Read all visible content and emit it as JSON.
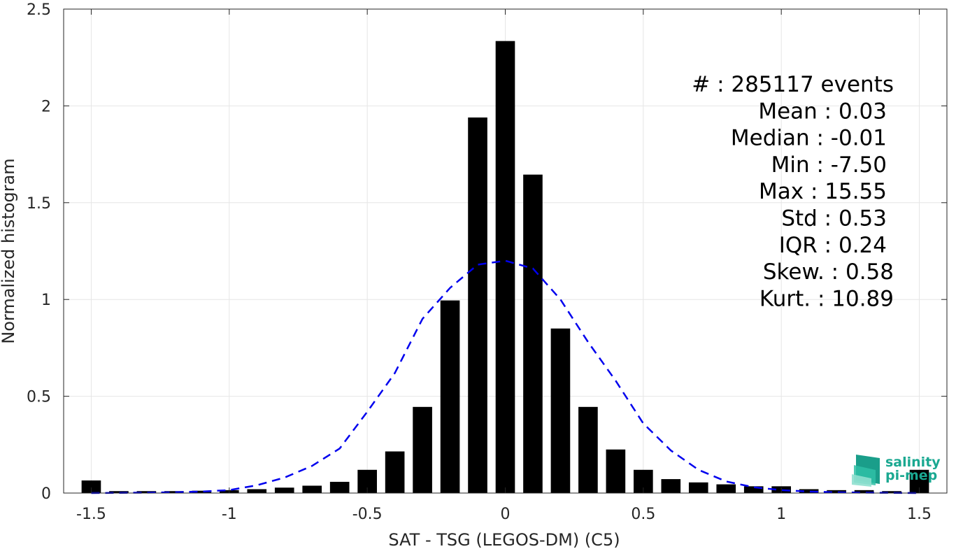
{
  "chart_data": {
    "type": "bar",
    "xlabel": "SAT - TSG (LEGOS-DM) (C5)",
    "ylabel": "Normalized histogram",
    "xlim": [
      -1.6,
      1.6
    ],
    "ylim": [
      0,
      2.5
    ],
    "grid": true,
    "x_ticks": [
      "-1.5",
      "-1",
      "-0.5",
      "0",
      "0.5",
      "1",
      "1.5"
    ],
    "x_tick_values": [
      -1.5,
      -1,
      -0.5,
      0,
      0.5,
      1,
      1.5
    ],
    "y_ticks": [
      "0",
      "0.5",
      "1",
      "1.5",
      "2",
      "2.5"
    ],
    "y_tick_values": [
      0,
      0.5,
      1,
      1.5,
      2,
      2.5
    ],
    "bar_color": "#000000",
    "bars": {
      "x": [
        -1.5,
        -1.4,
        -1.3,
        -1.2,
        -1.1,
        -1.0,
        -0.9,
        -0.8,
        -0.7,
        -0.6,
        -0.5,
        -0.4,
        -0.3,
        -0.2,
        -0.1,
        0.0,
        0.1,
        0.2,
        0.3,
        0.4,
        0.5,
        0.6,
        0.7,
        0.8,
        0.9,
        1.0,
        1.1,
        1.2,
        1.3,
        1.4,
        1.5
      ],
      "values": [
        0.065,
        0.01,
        0.01,
        0.01,
        0.012,
        0.015,
        0.02,
        0.028,
        0.038,
        0.058,
        0.12,
        0.215,
        0.445,
        0.995,
        1.94,
        2.335,
        1.645,
        0.85,
        0.445,
        0.225,
        0.12,
        0.072,
        0.055,
        0.045,
        0.035,
        0.035,
        0.02,
        0.015,
        0.015,
        0.01,
        0.12
      ]
    },
    "fit_curve": {
      "style": "dashed",
      "color": "#0000ee",
      "x": [
        -1.5,
        -1.4,
        -1.3,
        -1.2,
        -1.1,
        -1.0,
        -0.9,
        -0.8,
        -0.7,
        -0.6,
        -0.5,
        -0.4,
        -0.3,
        -0.2,
        -0.1,
        0.0,
        0.1,
        0.2,
        0.3,
        0.4,
        0.5,
        0.6,
        0.7,
        0.8,
        0.9,
        1.0,
        1.1,
        1.2,
        1.3,
        1.4,
        1.5
      ],
      "y": [
        0.0,
        0.001,
        0.002,
        0.004,
        0.008,
        0.015,
        0.04,
        0.08,
        0.14,
        0.23,
        0.42,
        0.62,
        0.9,
        1.06,
        1.18,
        1.2,
        1.16,
        1.0,
        0.78,
        0.58,
        0.36,
        0.22,
        0.12,
        0.06,
        0.03,
        0.015,
        0.008,
        0.004,
        0.002,
        0.001,
        0.0
      ]
    },
    "annotations": [
      {
        "label": "#  : 285117 events"
      },
      {
        "label": "Mean : 0.03"
      },
      {
        "label": "Median : -0.01"
      },
      {
        "label": "Min : -7.50"
      },
      {
        "label": "Max : 15.55"
      },
      {
        "label": "Std : 0.53"
      },
      {
        "label": "IQR : 0.24"
      },
      {
        "label": "Skew. : 0.58"
      },
      {
        "label": "Kurt. : 10.89"
      }
    ]
  },
  "logo": {
    "line1": "salinity",
    "line2": "pi-mep",
    "color": "#1aa891"
  }
}
